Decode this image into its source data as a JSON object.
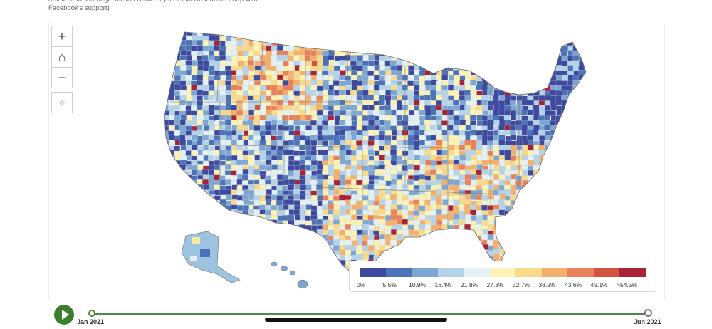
{
  "caption": {
    "text": "results from Carnegie Mellon University's Delphi Research Group with Facebook's support)"
  },
  "controls": {
    "zoom_in": "+",
    "home": "⌂",
    "zoom_out": "−",
    "locate": "⌖"
  },
  "legend": {
    "colors": [
      "#3d4aa0",
      "#4c72b8",
      "#7ea6d2",
      "#b4d3e8",
      "#e3f0f4",
      "#fbf3b6",
      "#f9d98a",
      "#f4b06a",
      "#e9825a",
      "#d2533e",
      "#a82337"
    ],
    "labels": [
      "0%",
      "5.5%",
      "10.9%",
      "16.4%",
      "21.8%",
      "27.3%",
      "32.7%",
      "38.2%",
      "43.6%",
      "49.1%",
      ">54.5%"
    ]
  },
  "timeline": {
    "start_label": "Jan 2021",
    "end_label": "Jun 2021",
    "position_fraction": 0
  }
}
